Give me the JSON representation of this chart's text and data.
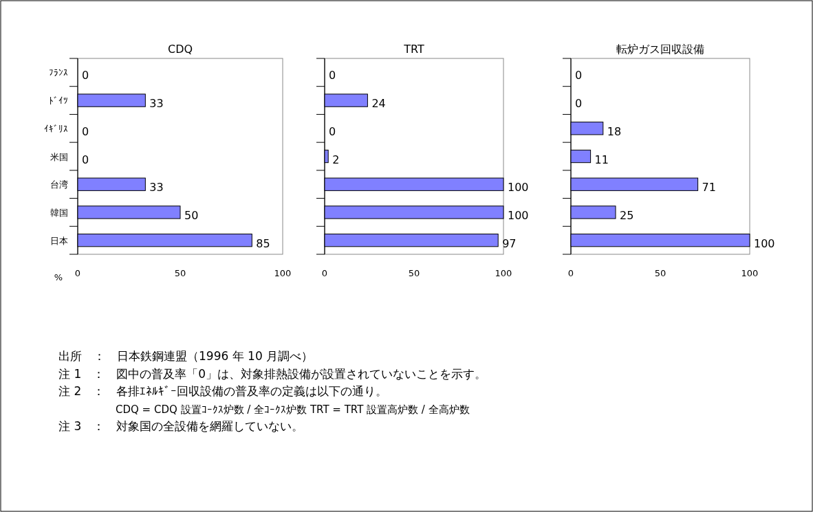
{
  "chart_data": [
    {
      "type": "bar",
      "orientation": "horizontal",
      "title": "CDQ",
      "xlabel": "%",
      "categories": [
        "ﾌﾗﾝｽ",
        "ﾄﾞｲﾂ",
        "ｲｷﾞﾘｽ",
        "米国",
        "台湾",
        "韓国",
        "日本"
      ],
      "values": [
        0,
        33,
        0,
        0,
        33,
        50,
        85
      ],
      "color": "#8080ff",
      "xlim": [
        0,
        100
      ],
      "xticks": [
        0,
        50,
        100
      ],
      "data_labels": true,
      "annotations": [
        "出所　：　日本鉄鋼連盟（1996 年 10 月調べ）",
        "注 1　：　図中の普及率「0」は、対象排熱設備が設置されていないことを示す。",
        "注 2　：　各排ｴﾈﾙｷﾞｰ回収設備の普及率の定義は以下の通り。",
        "CDQ = CDQ 設置ｺｰｸｽ炉数 / 全ｺｰｸｽ炉数 TRT = TRT 設置高炉数 / 全高炉数",
        "注 3　：　対象国の全設備を網羅していない。"
      ]
    },
    {
      "type": "bar",
      "orientation": "horizontal",
      "title": "TRT",
      "categories": [
        null,
        null,
        null,
        null,
        null,
        null,
        null
      ],
      "values": [
        0,
        24,
        0,
        2,
        100,
        100,
        97
      ],
      "color": "#8080ff",
      "xlim": [
        0,
        100
      ],
      "xticks": [
        0,
        50,
        100
      ],
      "data_labels": true,
      "tick_labels": "x"
    },
    {
      "type": "bar",
      "orientation": "horizontal",
      "title": "転炉ガス回収設備",
      "categories": [
        null,
        null,
        null,
        null,
        null,
        null,
        null
      ],
      "values": [
        0,
        0,
        18,
        11,
        71,
        25,
        100
      ],
      "color": "#8080ff",
      "xlim": [
        0,
        100
      ],
      "xticks": [
        0,
        50,
        100
      ],
      "data_labels": true,
      "tick_labels": "x"
    }
  ]
}
